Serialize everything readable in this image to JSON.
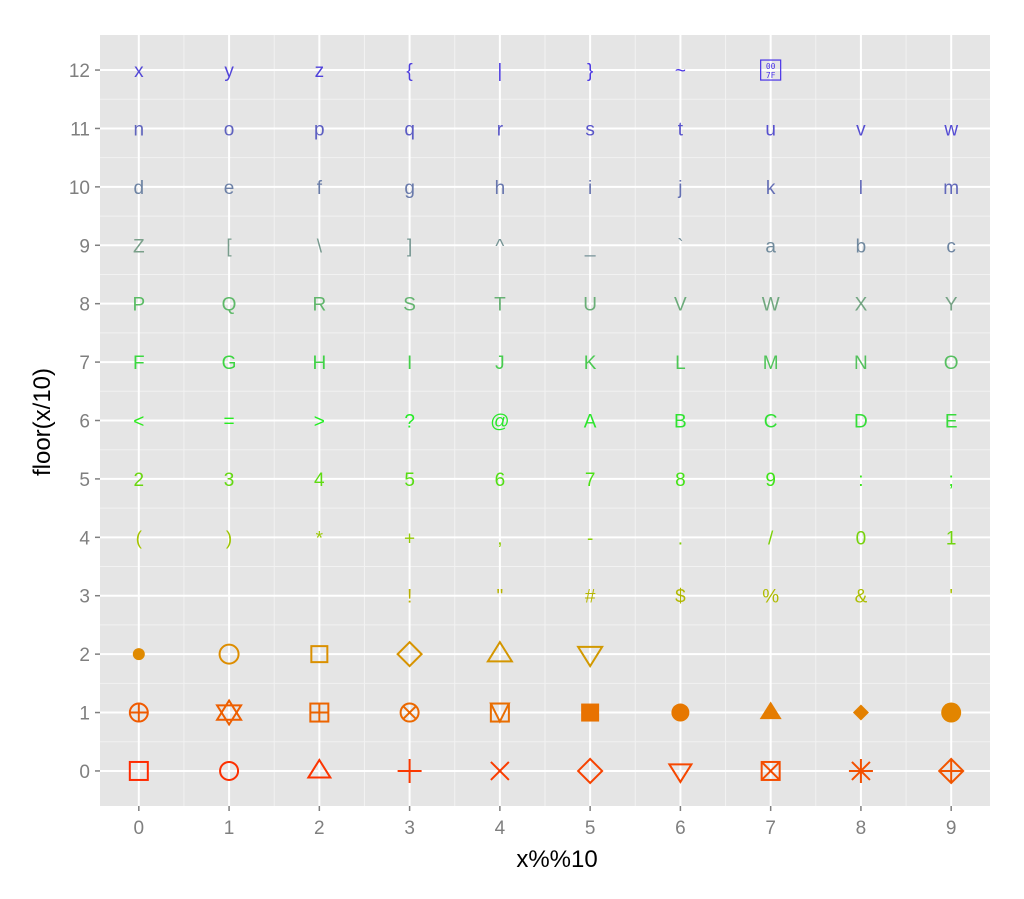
{
  "chart_data": {
    "type": "scatter",
    "xlabel": "x%%10",
    "ylabel": "floor(x/10)",
    "xlim": [
      -0.43,
      9.43
    ],
    "ylim": [
      -0.6,
      12.6
    ],
    "x_ticks": [
      0,
      1,
      2,
      3,
      4,
      5,
      6,
      7,
      8,
      9
    ],
    "y_ticks": [
      0,
      1,
      2,
      3,
      4,
      5,
      6,
      7,
      8,
      9,
      10,
      11,
      12
    ],
    "grid": true,
    "legend": "none",
    "description_of_marks": "Each point x in 0..127 plotted at (x mod 10, floor(x/10)) with pch = x; color gradient red (x=0) to blue (x=127)",
    "rows": [
      {
        "y": 0,
        "marks": [
          "square-open",
          "circle-open",
          "triangle-open",
          "plus",
          "cross",
          "diamond-open",
          "triangle-down-open",
          "square-cross",
          "star",
          "diamond-plus"
        ]
      },
      {
        "y": 1,
        "marks": [
          "circle-plus",
          "triangles-up-down",
          "square-plus",
          "circle-cross",
          "square-triangle",
          "square-filled",
          "circle-filled",
          "triangle-filled",
          "diamond-filled-small",
          "circle-filled-large"
        ]
      },
      {
        "y": 2,
        "marks": [
          "bullet",
          "circle-open-large",
          "square-open-small",
          "diamond-open-large",
          "triangle-open-large",
          "triangle-down-open-large",
          "",
          "",
          "",
          ""
        ]
      },
      {
        "y": 3,
        "marks": [
          "",
          "",
          "",
          "!",
          "\"",
          "#",
          "$",
          "%",
          "&",
          "'"
        ]
      },
      {
        "y": 4,
        "marks": [
          "(",
          ")",
          "*",
          "+",
          ",",
          "-",
          ".",
          "/",
          "0",
          "1"
        ]
      },
      {
        "y": 5,
        "marks": [
          "2",
          "3",
          "4",
          "5",
          "6",
          "7",
          "8",
          "9",
          ":",
          ";"
        ]
      },
      {
        "y": 6,
        "marks": [
          "<",
          "=",
          ">",
          "?",
          "@",
          "A",
          "B",
          "C",
          "D",
          "E"
        ]
      },
      {
        "y": 7,
        "marks": [
          "F",
          "G",
          "H",
          "I",
          "J",
          "K",
          "L",
          "M",
          "N",
          "O"
        ]
      },
      {
        "y": 8,
        "marks": [
          "P",
          "Q",
          "R",
          "S",
          "T",
          "U",
          "V",
          "W",
          "X",
          "Y"
        ]
      },
      {
        "y": 9,
        "marks": [
          "Z",
          "[",
          "\\",
          "]",
          "^",
          "_",
          "`",
          "a",
          "b",
          "c"
        ]
      },
      {
        "y": 10,
        "marks": [
          "d",
          "e",
          "f",
          "g",
          "h",
          "i",
          "j",
          "k",
          "l",
          "m"
        ]
      },
      {
        "y": 11,
        "marks": [
          "n",
          "o",
          "p",
          "q",
          "r",
          "s",
          "t",
          "u",
          "v",
          "w"
        ]
      },
      {
        "y": 12,
        "marks": [
          "x",
          "y",
          "z",
          "{",
          "|",
          "}",
          "~",
          "007F",
          "",
          ""
        ]
      }
    ],
    "colors": {
      "panel_bg": "#e5e5e5",
      "grid_major": "#ffffff",
      "grid_minor": "#f2f2f2",
      "tick_label": "#7f7f7f",
      "gradient_start": "#ff2a00",
      "gradient_mid_1": "#e08a00",
      "gradient_mid_2": "#a6c400",
      "gradient_mid_3": "#22ee22",
      "gradient_mid_4": "#7aa08a",
      "gradient_end": "#4a33e8"
    }
  }
}
